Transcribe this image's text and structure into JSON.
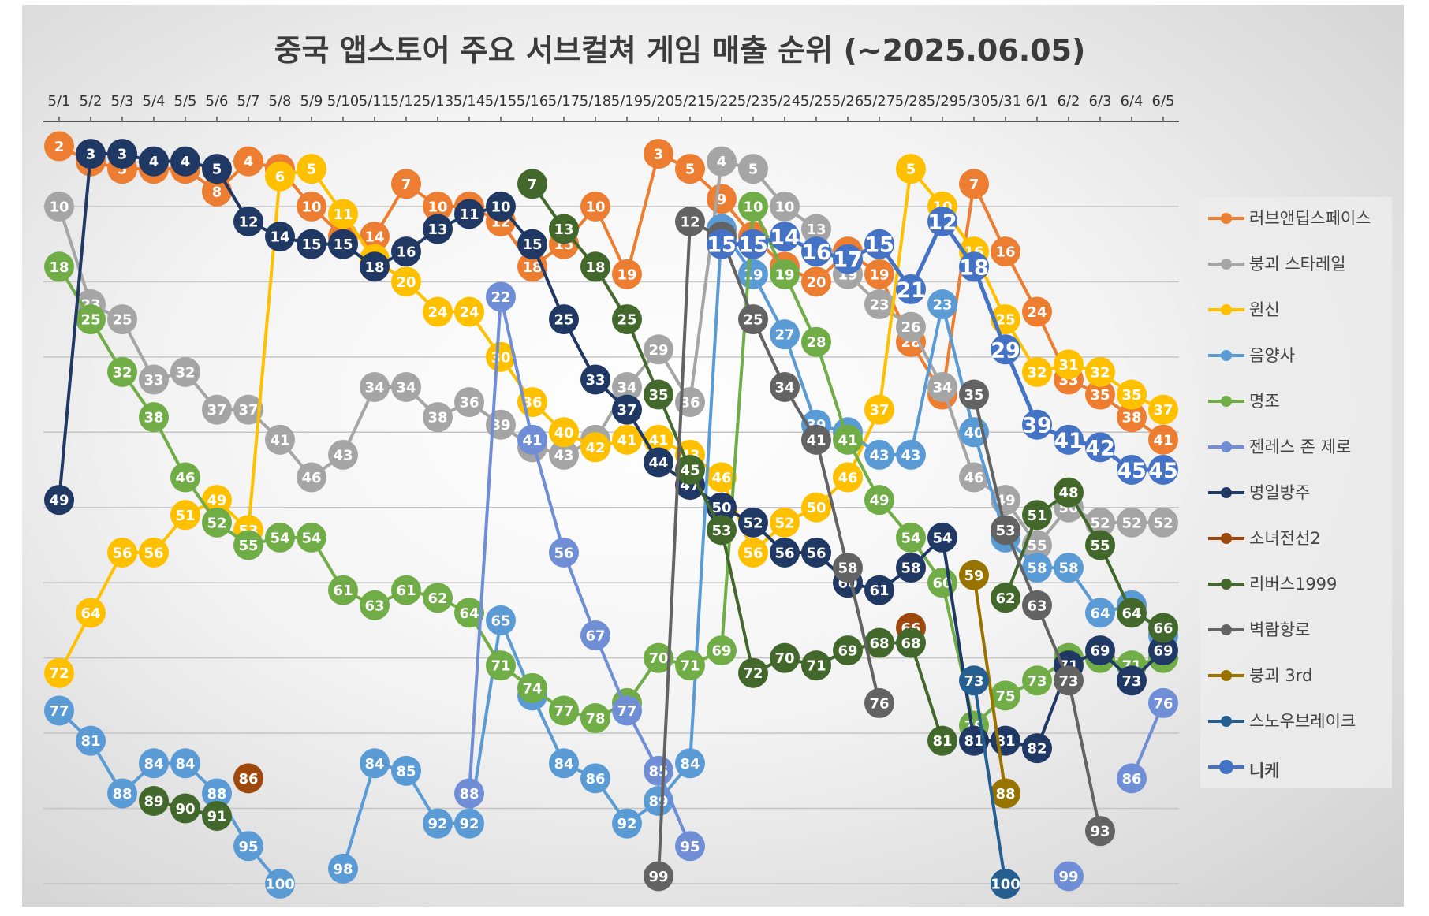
{
  "chart_data": {
    "type": "line",
    "title": "중국 앱스토어 주요 서브컬쳐 게임 매출 순위 (~2025.06.05)",
    "x": [
      "5/1",
      "5/2",
      "5/3",
      "5/4",
      "5/5",
      "5/6",
      "5/7",
      "5/8",
      "5/9",
      "5/10",
      "5/11",
      "5/12",
      "5/13",
      "5/14",
      "5/15",
      "5/16",
      "5/17",
      "5/18",
      "5/19",
      "5/20",
      "5/21",
      "5/22",
      "5/23",
      "5/24",
      "5/25",
      "5/26",
      "5/27",
      "5/28",
      "5/29",
      "5/30",
      "5/31",
      "6/1",
      "6/2",
      "6/3",
      "6/4",
      "6/5"
    ],
    "ylim": [
      1,
      100
    ],
    "y_inverted": true,
    "grid": "horizontal",
    "legend_position": "right",
    "series": [
      {
        "name": "러브앤딥스페이스",
        "color": "#ED7D31",
        "values": [
          2,
          4,
          5,
          5,
          5,
          8,
          4,
          5,
          10,
          14,
          14,
          7,
          10,
          10,
          12,
          18,
          15,
          10,
          19,
          3,
          5,
          9,
          14,
          18,
          20,
          16,
          19,
          28,
          35,
          7,
          16,
          24,
          33,
          35,
          38,
          41
        ]
      },
      {
        "name": "붕괴 스타레일",
        "color": "#A5A5A5",
        "values": [
          10,
          23,
          25,
          33,
          32,
          37,
          37,
          41,
          46,
          43,
          34,
          34,
          38,
          36,
          39,
          42,
          43,
          41,
          34,
          29,
          36,
          4,
          5,
          10,
          13,
          19,
          23,
          26,
          34,
          46,
          49,
          55,
          50,
          52,
          52,
          52
        ]
      },
      {
        "name": "원신",
        "color": "#FFC000",
        "values": [
          72,
          64,
          56,
          56,
          51,
          49,
          53,
          6,
          5,
          11,
          17,
          20,
          24,
          24,
          30,
          36,
          40,
          42,
          41,
          41,
          43,
          46,
          56,
          52,
          50,
          46,
          37,
          5,
          10,
          16,
          25,
          32,
          31,
          32,
          35,
          37
        ]
      },
      {
        "name": "음양사",
        "color": "#5B9BD5",
        "values": [
          77,
          81,
          88,
          84,
          84,
          88,
          95,
          100,
          null,
          98,
          84,
          85,
          92,
          92,
          65,
          75,
          84,
          86,
          92,
          89,
          84,
          13,
          19,
          27,
          39,
          40,
          43,
          43,
          23,
          40,
          54,
          58,
          58,
          64,
          63,
          67
        ]
      },
      {
        "name": "명조",
        "color": "#70AD47",
        "values": [
          18,
          25,
          32,
          38,
          46,
          52,
          55,
          54,
          54,
          61,
          63,
          61,
          62,
          64,
          71,
          74,
          77,
          78,
          76,
          70,
          71,
          69,
          10,
          19,
          28,
          41,
          49,
          54,
          60,
          79,
          75,
          73,
          70,
          70,
          71,
          70
        ]
      },
      {
        "name": "젠레스 존 제로",
        "color": "#6F8ED6",
        "values": [
          null,
          null,
          null,
          null,
          null,
          null,
          null,
          null,
          null,
          null,
          null,
          null,
          null,
          88,
          22,
          41,
          56,
          67,
          77,
          85,
          95,
          null,
          null,
          null,
          null,
          null,
          null,
          null,
          null,
          null,
          null,
          null,
          99,
          null,
          86,
          76
        ]
      },
      {
        "name": "명일방주",
        "color": "#203864",
        "values": [
          49,
          3,
          3,
          4,
          4,
          5,
          12,
          14,
          15,
          15,
          18,
          16,
          13,
          11,
          10,
          15,
          25,
          33,
          37,
          44,
          47,
          50,
          52,
          56,
          56,
          60,
          61,
          58,
          54,
          81,
          81,
          82,
          71,
          69,
          73,
          69
        ]
      },
      {
        "name": "소녀전선2",
        "color": "#9E480E",
        "values": [
          null,
          null,
          null,
          null,
          null,
          null,
          86,
          null,
          null,
          null,
          null,
          null,
          null,
          null,
          null,
          null,
          null,
          null,
          null,
          null,
          null,
          null,
          null,
          null,
          null,
          null,
          null,
          66,
          null,
          null,
          null,
          null,
          null,
          null,
          null,
          null
        ]
      },
      {
        "name": "리버스1999",
        "color": "#43682B",
        "values": [
          null,
          null,
          null,
          89,
          90,
          91,
          null,
          null,
          null,
          null,
          null,
          null,
          null,
          null,
          null,
          7,
          13,
          18,
          25,
          35,
          45,
          53,
          72,
          70,
          71,
          69,
          68,
          68,
          81,
          null,
          62,
          51,
          48,
          55,
          64,
          66
        ]
      },
      {
        "name": "벽람항로",
        "color": "#636363",
        "values": [
          null,
          null,
          null,
          null,
          null,
          null,
          null,
          null,
          null,
          null,
          null,
          null,
          null,
          null,
          null,
          null,
          null,
          null,
          null,
          99,
          12,
          14,
          25,
          34,
          41,
          58,
          76,
          null,
          null,
          35,
          53,
          63,
          73,
          93,
          null,
          null
        ]
      },
      {
        "name": "붕괴 3rd",
        "color": "#997300",
        "values": [
          null,
          null,
          null,
          null,
          null,
          null,
          null,
          null,
          null,
          null,
          null,
          null,
          null,
          null,
          null,
          null,
          null,
          null,
          null,
          null,
          null,
          null,
          null,
          null,
          null,
          null,
          null,
          null,
          null,
          59,
          88,
          null,
          null,
          null,
          null,
          null
        ]
      },
      {
        "name": "스노우브레이크",
        "color": "#255E91",
        "values": [
          null,
          null,
          null,
          null,
          null,
          null,
          null,
          null,
          null,
          null,
          null,
          null,
          null,
          null,
          null,
          null,
          null,
          null,
          null,
          null,
          null,
          null,
          null,
          null,
          null,
          null,
          null,
          null,
          null,
          73,
          100,
          null,
          null,
          null,
          null,
          null
        ]
      },
      {
        "name": "니케",
        "color": "#4472C4",
        "emphasis": true,
        "values": [
          null,
          null,
          null,
          null,
          null,
          null,
          null,
          null,
          null,
          null,
          null,
          null,
          null,
          null,
          null,
          null,
          null,
          null,
          null,
          null,
          null,
          15,
          15,
          14,
          16,
          17,
          15,
          21,
          12,
          18,
          29,
          39,
          41,
          42,
          45,
          45
        ]
      }
    ]
  }
}
